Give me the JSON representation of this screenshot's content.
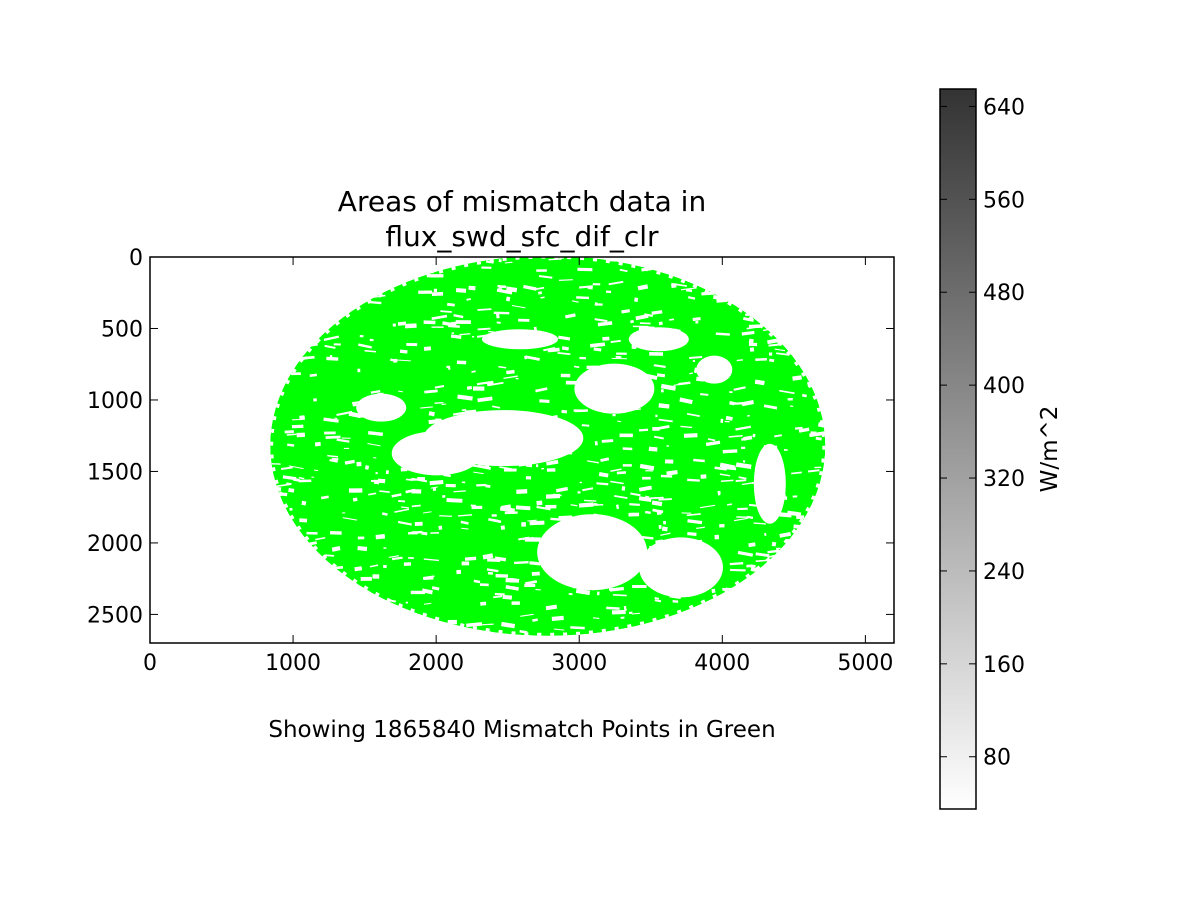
{
  "chart_data": {
    "type": "heatmap",
    "title_lines": [
      "Areas of mismatch data in",
      "flux_swd_sfc_dif_clr"
    ],
    "caption": "Showing 1865840 Mismatch Points in Green",
    "xlim": [
      0,
      5200
    ],
    "ylim": [
      2700,
      0
    ],
    "y_inverted": true,
    "xticks": [
      0,
      1000,
      2000,
      3000,
      4000,
      5000
    ],
    "yticks": [
      0,
      500,
      1000,
      1500,
      2000,
      2500
    ],
    "grid": false,
    "mismatch_color": "#00ff00",
    "mismatch_count": 1865840,
    "disk": {
      "cx": 2780,
      "cy": 1320,
      "rx": 1940,
      "ry": 1330
    },
    "colorbar": {
      "label": "W/m^2",
      "range": [
        35,
        655
      ],
      "ticks": [
        80,
        160,
        240,
        320,
        400,
        480,
        560,
        640
      ],
      "color_low": "#ffffff",
      "color_high": "#333333"
    }
  }
}
